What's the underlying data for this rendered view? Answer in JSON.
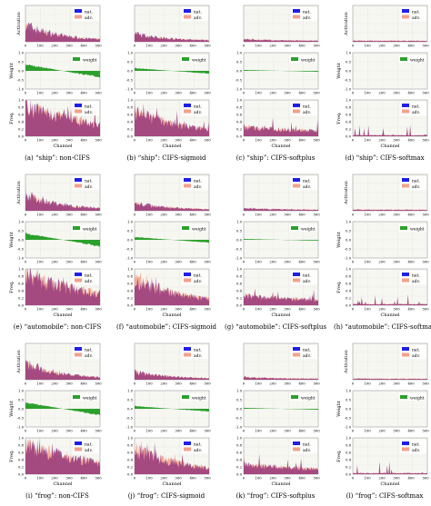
{
  "colors": {
    "nat": "#1f1fe8",
    "adv": "#f5a08a",
    "overlap": "#8a2a7a",
    "weight": "#2ca02c",
    "grid": "#e3e3e3",
    "plot_bg": "#f7f7f2"
  },
  "columns": [
    "non-CIFS",
    "CIFS-sigmoid",
    "CIFS-softplus",
    "CIFS-softmax"
  ],
  "classes": [
    "ship",
    "automobile",
    "frog"
  ],
  "captions": [
    "(a) “ship”: non-CIFS",
    "(b) “ship”: CIFS-sigmoid",
    "(c) “ship”: CIFS-softplus",
    "(d) “ship”: CIFS-softmax",
    "(e) “automobile”: non-CIFS",
    "(f) “automobile”: CIFS-sigmoid",
    "(g) “automobile”: CIFS-softplus",
    "(h) “automobile”: CIFS-softmax",
    "(i) “frog”: non-CIFS",
    "(j) “frog”: CIFS-sigmoid",
    "(k) “frog”: CIFS-softplus",
    "(l) “frog”: CIFS-softmax"
  ],
  "labels": {
    "activation_ylabel": "Activation",
    "weight_ylabel": "Weight",
    "freq_ylabel": "Freq.",
    "xlabel": "Channel",
    "legend_nat": "nat.",
    "legend_adv": "adv.",
    "legend_weight": "weight"
  },
  "chart_data": {
    "type": "area",
    "layout": "4 columns x 3 class groups; each group has activation, weight, freq panels per column",
    "x": {
      "range": [
        0,
        512
      ],
      "ticks": [
        0,
        100,
        200,
        300,
        400,
        500
      ]
    },
    "panels": {
      "activation": {
        "ylabel": "Activation",
        "ylim": [
          0,
          1
        ],
        "series": [
          "nat.",
          "adv."
        ],
        "legend": "top-right"
      },
      "weight": {
        "ylabel": "Weight",
        "ylim": [
          -1.0,
          1.0
        ],
        "yticks": [
          -1.0,
          -0.5,
          0.0,
          0.5,
          1.0
        ],
        "series": [
          "weight"
        ],
        "legend": "top-right"
      },
      "freq": {
        "ylabel": "Freq.",
        "ylim": [
          0,
          1.0
        ],
        "yticks": [
          0.0,
          0.2,
          0.4,
          0.6,
          0.8,
          1.0
        ],
        "series": [
          "nat.",
          "adv."
        ],
        "legend": "top-right"
      }
    },
    "profiles": {
      "non-CIFS": {
        "activation_decay": 0.45,
        "weight_amp": 0.35,
        "freq_level": 0.85,
        "freq_decay": 0.25
      },
      "CIFS-sigmoid": {
        "activation_decay": 0.2,
        "weight_amp": 0.15,
        "freq_level": 0.7,
        "freq_decay": 0.35
      },
      "CIFS-softplus": {
        "activation_decay": 0.05,
        "weight_amp": 0.05,
        "freq_level": 0.25,
        "freq_decay": 0.15
      },
      "CIFS-softmax": {
        "activation_decay": 0.01,
        "weight_amp": 0.0,
        "freq_level": 0.02,
        "freq_decay": 0.02
      }
    }
  }
}
